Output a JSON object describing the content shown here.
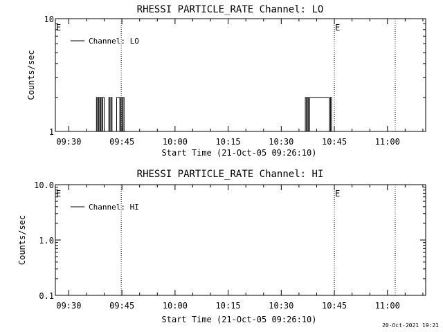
{
  "footer": {
    "timestamp": "20-Oct-2021 19:21"
  },
  "chart_data": [
    {
      "type": "line",
      "title": "RHESSI PARTICLE_RATE Channel: LO",
      "xlabel": "Start Time (21-Oct-05 09:26:10)",
      "ylabel": "Counts/sec",
      "x_tick_labels": [
        "09:30",
        "09:45",
        "10:00",
        "10:15",
        "10:30",
        "10:45",
        "11:00"
      ],
      "x_ticks_minutes": [
        570,
        585,
        600,
        615,
        630,
        645,
        660
      ],
      "xlim_minutes": [
        566.2,
        670.8
      ],
      "yscale": "log",
      "ylim": [
        1,
        10
      ],
      "y_tick_labels": [
        "1",
        "10"
      ],
      "y_tick_values": [
        1,
        10
      ],
      "legend": {
        "label": "Channel: LO",
        "placement": "top-left"
      },
      "event_markers": [
        {
          "label": "E",
          "minute": 566.2
        },
        {
          "label": "E",
          "minute": 645
        }
      ],
      "vertical_dotted_lines_minutes": [
        584.8,
        645,
        662.2
      ],
      "series": [
        {
          "name": "Channel: LO",
          "x_minutes": [
            577.5,
            577.8,
            578.1,
            578.4,
            578.7,
            579.0,
            579.3,
            579.6,
            580.0,
            581.0,
            581.3,
            581.6,
            581.9,
            582.2,
            583.5,
            583.8,
            584.1,
            584.4,
            584.7,
            585.0,
            585.3,
            585.6,
            585.9,
            636.5,
            636.8,
            637.1,
            637.4,
            637.7,
            638.0,
            643.6,
            643.9,
            644.2
          ],
          "y": [
            1,
            2,
            1,
            2,
            1,
            2,
            1,
            2,
            1,
            1,
            2,
            1,
            2,
            1,
            2,
            2,
            2,
            1,
            2,
            1,
            2,
            1,
            1,
            1,
            2,
            1,
            2,
            1,
            2,
            1,
            2,
            1
          ]
        }
      ]
    },
    {
      "type": "line",
      "title": "RHESSI PARTICLE_RATE Channel: HI",
      "xlabel": "Start Time (21-Oct-05 09:26:10)",
      "ylabel": "Counts/sec",
      "x_tick_labels": [
        "09:30",
        "09:45",
        "10:00",
        "10:15",
        "10:30",
        "10:45",
        "11:00"
      ],
      "x_ticks_minutes": [
        570,
        585,
        600,
        615,
        630,
        645,
        660
      ],
      "xlim_minutes": [
        566.2,
        670.8
      ],
      "yscale": "log",
      "ylim": [
        0.1,
        10
      ],
      "y_tick_labels": [
        "0.1",
        "1.0",
        "10.0"
      ],
      "y_tick_values": [
        0.1,
        1,
        10
      ],
      "legend": {
        "label": "Channel: HI",
        "placement": "top-left"
      },
      "event_markers": [
        {
          "label": "E",
          "minute": 566.2
        },
        {
          "label": "E",
          "minute": 645
        }
      ],
      "vertical_dotted_lines_minutes": [
        584.8,
        645,
        662.2
      ],
      "series": [
        {
          "name": "Channel: HI",
          "x_minutes": [],
          "y": []
        }
      ]
    }
  ]
}
